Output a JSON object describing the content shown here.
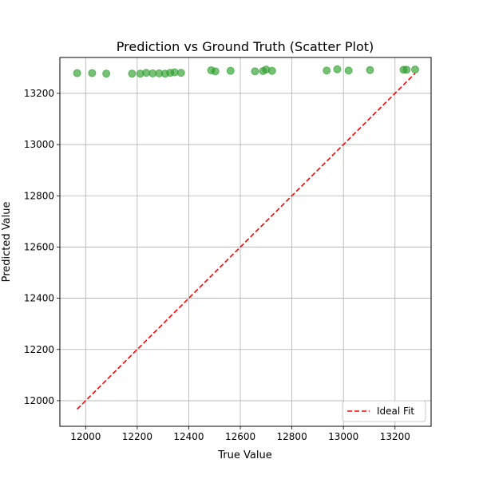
{
  "chart_data": {
    "type": "scatter",
    "title": "Prediction vs Ground Truth (Scatter Plot)",
    "xlabel": "True Value",
    "ylabel": "Predicted Value",
    "xlim": [
      11900,
      13340
    ],
    "ylim": [
      11900,
      13340
    ],
    "xticks": [
      12000,
      12200,
      12400,
      12600,
      12800,
      13000,
      13200
    ],
    "yticks": [
      12000,
      12200,
      12400,
      12600,
      12800,
      13000,
      13200
    ],
    "grid": true,
    "legend": {
      "position": "bottom-right",
      "entries": [
        "Ideal Fit"
      ]
    },
    "series": [
      {
        "kind": "points",
        "color": "#2ca02c",
        "alpha": 0.65,
        "x": [
          11967,
          12025,
          12080,
          12180,
          12212,
          12235,
          12260,
          12285,
          12308,
          12328,
          12345,
          12370,
          12487,
          12503,
          12562,
          12657,
          12688,
          12700,
          12723,
          12935,
          12976,
          13020,
          13103,
          13233,
          13245,
          13278
        ],
        "y": [
          13279,
          13279,
          13277,
          13277,
          13277,
          13280,
          13278,
          13278,
          13277,
          13280,
          13282,
          13280,
          13290,
          13286,
          13288,
          13286,
          13287,
          13293,
          13288,
          13289,
          13294,
          13289,
          13291,
          13292,
          13292,
          13293
        ]
      },
      {
        "name": "Ideal Fit",
        "kind": "line",
        "style": "dashed",
        "color": "#ff0000",
        "x": [
          11967,
          13278
        ],
        "y": [
          11967,
          13278
        ]
      }
    ]
  }
}
